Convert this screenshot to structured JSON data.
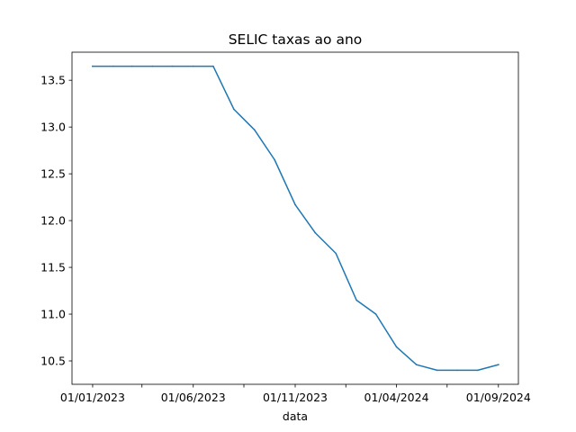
{
  "chart_data": {
    "type": "line",
    "title": "SELIC taxas ao ano",
    "xlabel": "data",
    "ylabel": "",
    "grid": false,
    "legend": "none",
    "xlim": [
      "2022-12-01",
      "2024-10-01"
    ],
    "ylim": [
      10.25,
      13.8
    ],
    "x_ticks": [
      "2023-01-01",
      "2023-03-16",
      "2023-06-01",
      "2023-08-16",
      "2023-11-01",
      "2024-01-16",
      "2024-04-01",
      "2024-06-16",
      "2024-09-01"
    ],
    "x_tick_labels": [
      "01/01/2023",
      "",
      "01/06/2023",
      "",
      "01/11/2023",
      "",
      "01/04/2024",
      "",
      "01/09/2024"
    ],
    "y_ticks": [
      10.5,
      11.0,
      11.5,
      12.0,
      12.5,
      13.0,
      13.5
    ],
    "y_tick_labels": [
      "10.5",
      "11.0",
      "11.5",
      "12.0",
      "12.5",
      "13.0",
      "13.5"
    ],
    "series": [
      {
        "color": "#1f77b4",
        "x": [
          "2023-01-01",
          "2023-02-01",
          "2023-03-01",
          "2023-04-01",
          "2023-05-01",
          "2023-06-01",
          "2023-07-01",
          "2023-08-01",
          "2023-09-01",
          "2023-10-01",
          "2023-11-01",
          "2023-12-01",
          "2024-01-01",
          "2024-02-01",
          "2024-03-01",
          "2024-04-01",
          "2024-05-01",
          "2024-06-01",
          "2024-07-01",
          "2024-08-01",
          "2024-09-01"
        ],
        "values": [
          13.65,
          13.65,
          13.65,
          13.65,
          13.65,
          13.65,
          13.65,
          13.19,
          12.97,
          12.65,
          12.17,
          11.87,
          11.65,
          11.15,
          11.0,
          10.65,
          10.46,
          10.4,
          10.4,
          10.4,
          10.46
        ]
      }
    ]
  }
}
